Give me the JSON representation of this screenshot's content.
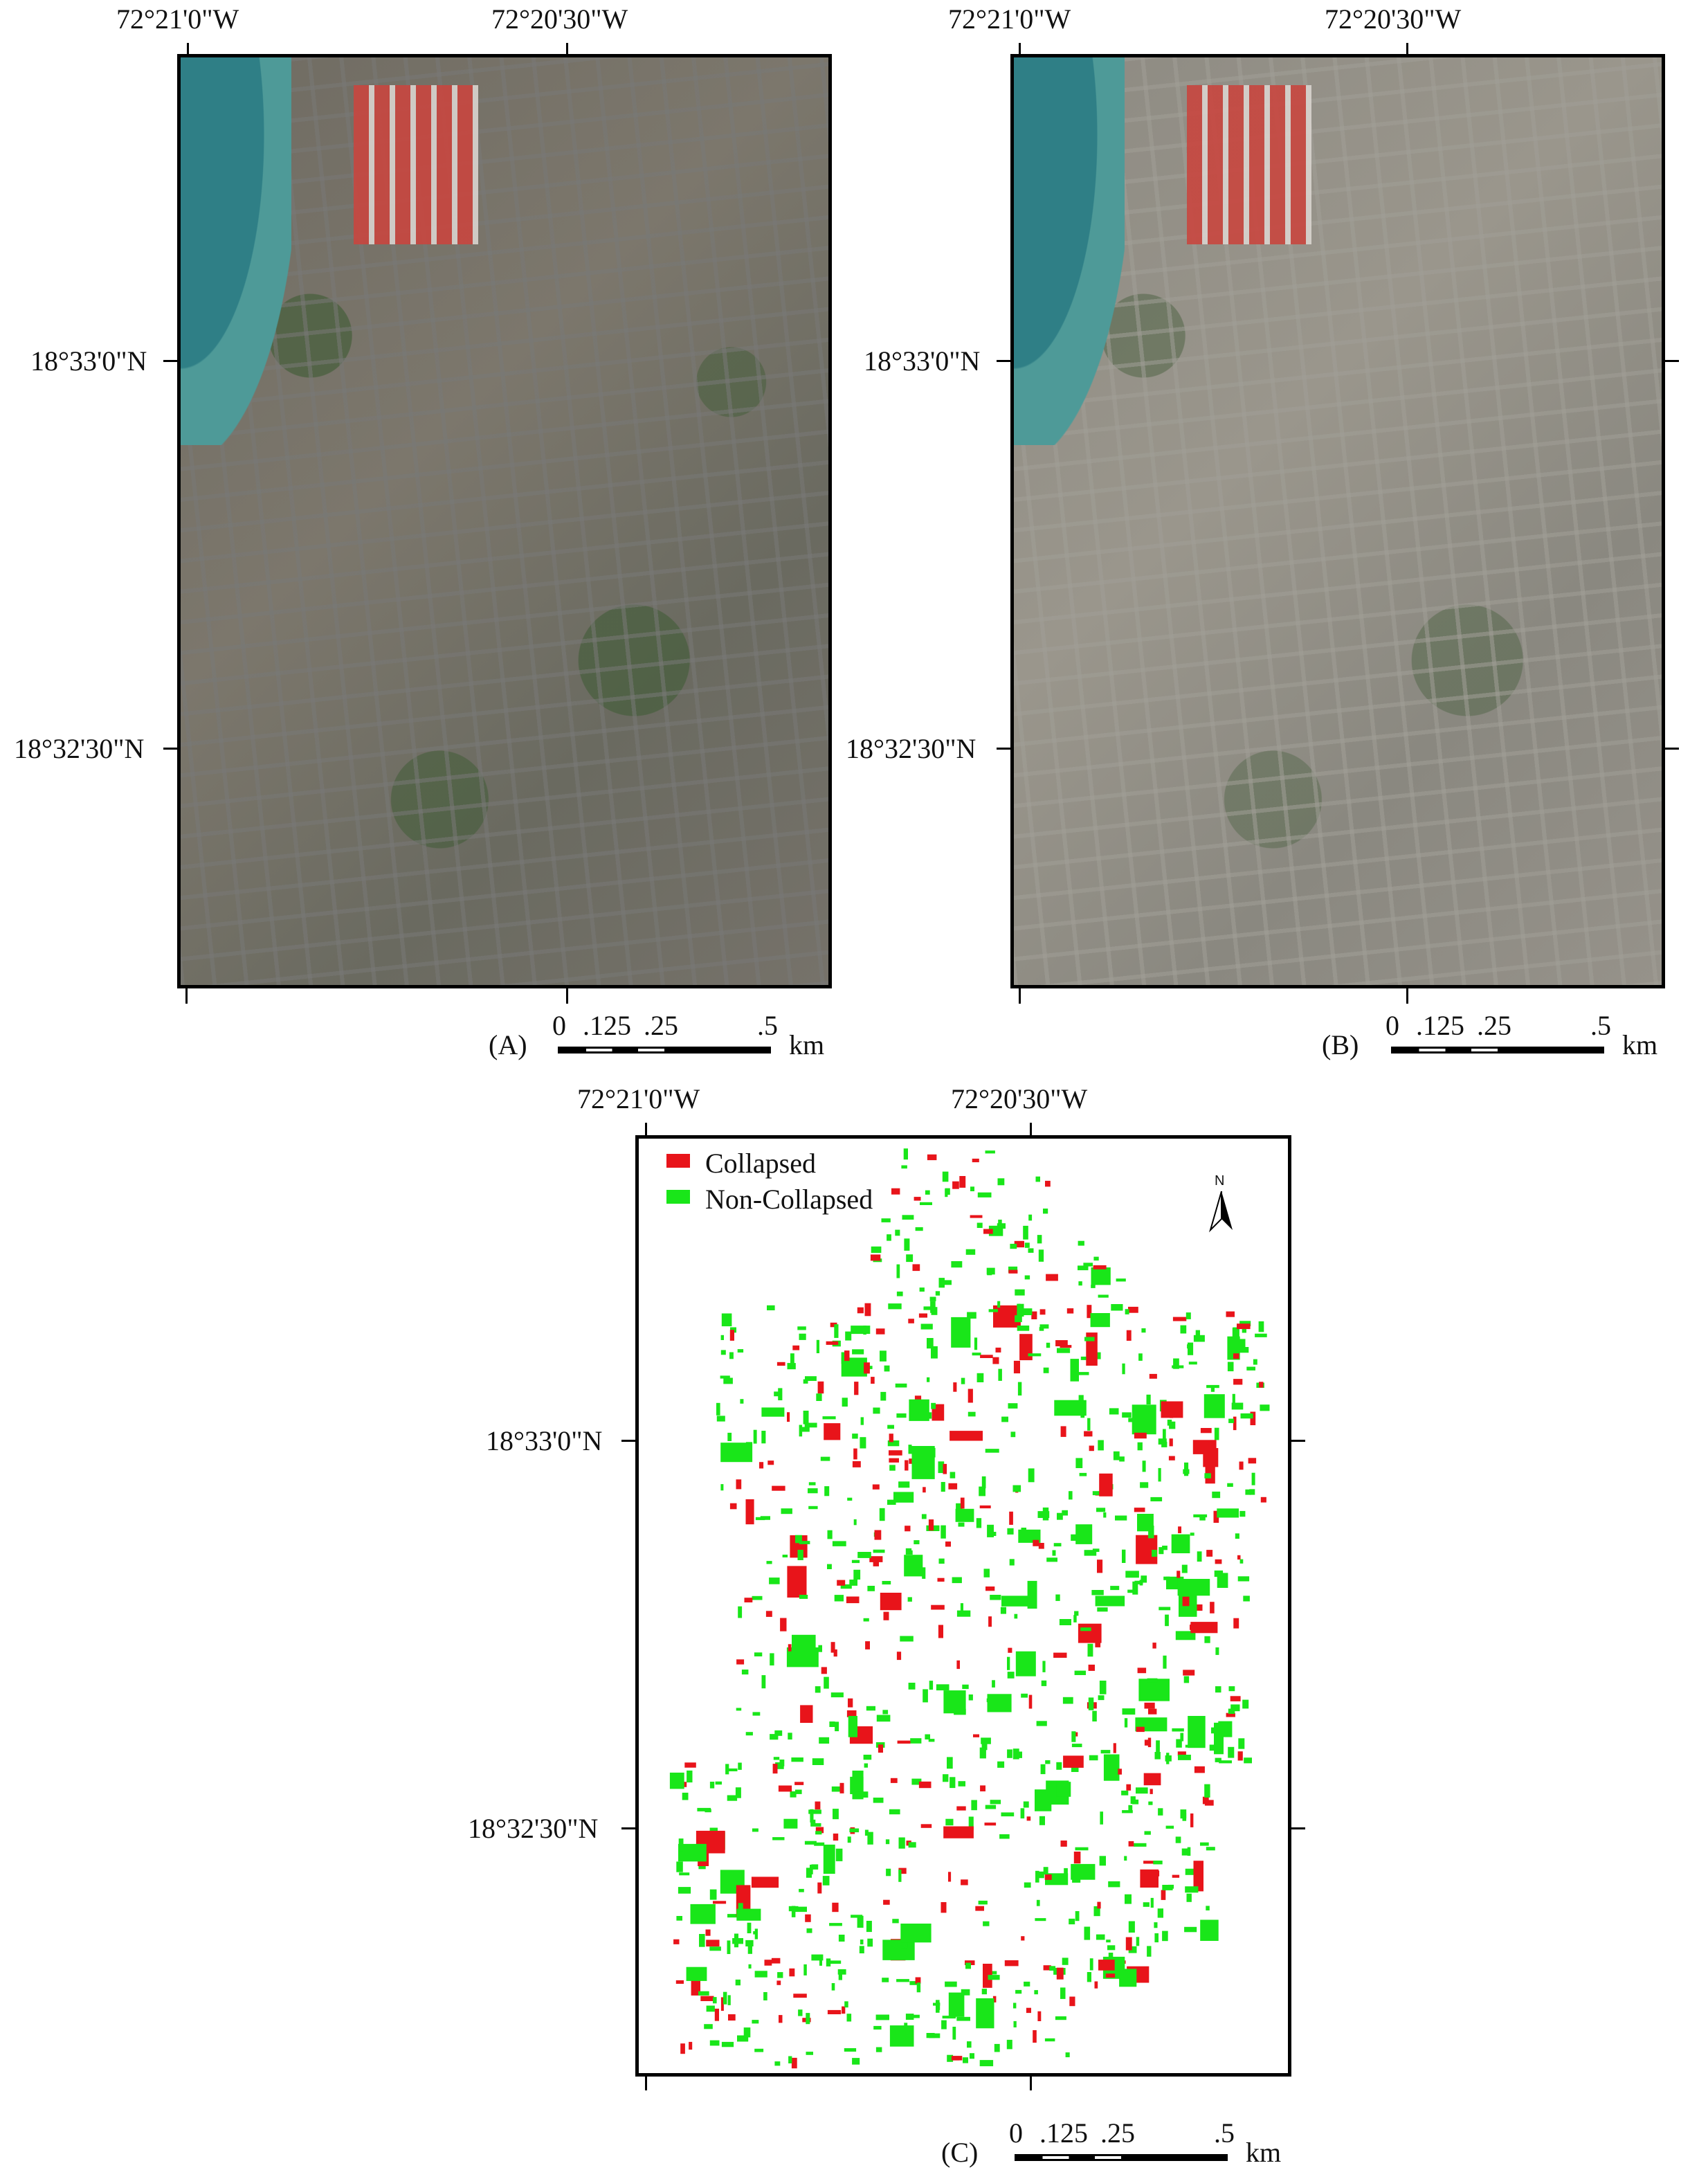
{
  "panels": {
    "A": {
      "label": "(A)",
      "top_lon_left": "72°21'0\"W",
      "top_lon_right": "72°20'30\"W",
      "lat_upper": "18°33'0\"N",
      "lat_lower": "18°32'30\"N",
      "scale": {
        "t0": "0",
        "t1": ".125",
        "t2": ".25",
        "t3": ".5",
        "unit": "km"
      }
    },
    "B": {
      "label": "(B)",
      "top_lon_left": "72°21'0\"W",
      "top_lon_right": "72°20'30\"W",
      "lat_upper": "18°33'0\"N",
      "lat_lower": "18°32'30\"N",
      "scale": {
        "t0": "0",
        "t1": ".125",
        "t2": ".25",
        "t3": ".5",
        "unit": "km"
      }
    },
    "C": {
      "label": "(C)",
      "top_lon_left": "72°21'0\"W",
      "top_lon_right": "72°20'30\"W",
      "lat_upper": "18°33'0\"N",
      "lat_lower": "18°32'30\"N",
      "north_label": "N",
      "legend": [
        {
          "label": "Collapsed",
          "color": "#e8141a"
        },
        {
          "label": "Non-Collapsed",
          "color": "#19e619"
        }
      ],
      "scale": {
        "t0": "0",
        "t1": ".125",
        "t2": ".25",
        "t3": ".5",
        "unit": "km"
      }
    }
  },
  "colors": {
    "collapsed": "#e8141a",
    "non_collapsed": "#19e619",
    "frame": "#000000"
  }
}
